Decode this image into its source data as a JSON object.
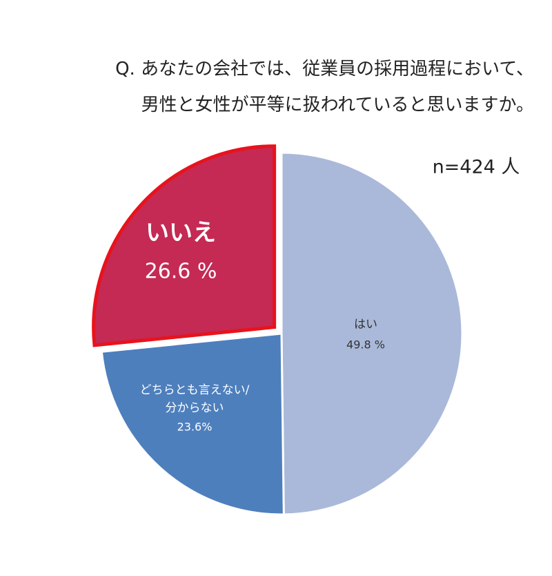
{
  "chart_data": {
    "type": "pie",
    "title": "Q. あなたの会社では、従業員の採用過程において、\n男性と女性が平等に扱われていると思いますか。",
    "annotation": "n=424 人",
    "categories": [
      "はい",
      "どちらとも言えない/\n分からない",
      "いいえ"
    ],
    "values": [
      49.8,
      23.6,
      26.6
    ],
    "value_labels": [
      "49.8 %",
      "23.6%",
      "26.6 %"
    ],
    "colors": [
      "#aab9d9",
      "#4e7fbd",
      "#c42a54"
    ]
  }
}
